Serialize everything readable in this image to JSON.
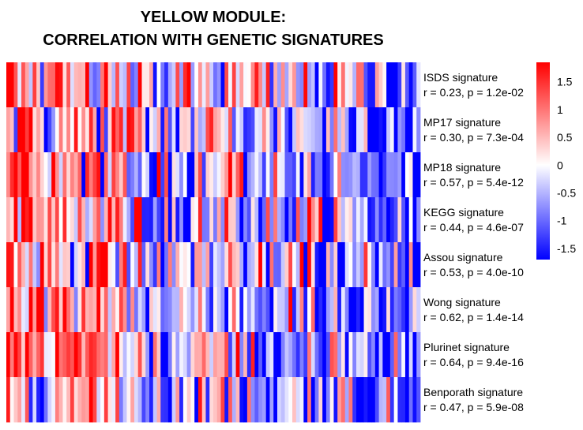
{
  "title_line1": "YELLOW MODULE:",
  "title_line2": "CORRELATION WITH GENETIC SIGNATURES",
  "chart_data": {
    "type": "heatmap",
    "title": "YELLOW MODULE: CORRELATION WITH GENETIC SIGNATURES",
    "columns": 110,
    "rows": [
      {
        "name": "ISDS signature",
        "stat": "r = 0.23, p = 1.2e-02",
        "r": 0.23
      },
      {
        "name": "MP17 signature",
        "stat": "r = 0.30, p = 7.3e-04",
        "r": 0.3
      },
      {
        "name": "MP18 signature",
        "stat": "r = 0.57, p = 5.4e-12",
        "r": 0.57
      },
      {
        "name": "KEGG signature",
        "stat": "r = 0.44, p = 4.6e-07",
        "r": 0.44
      },
      {
        "name": "Assou signature",
        "stat": "r = 0.53, p = 4.0e-10",
        "r": 0.53
      },
      {
        "name": "Wong signature",
        "stat": "r = 0.62, p = 1.4e-14",
        "r": 0.62
      },
      {
        "name": "Plurinet signature",
        "stat": "r = 0.64, p = 9.4e-16",
        "r": 0.64
      },
      {
        "name": "Benporath signature",
        "stat": "r = 0.47, p = 5.9e-08",
        "r": 0.47
      }
    ],
    "colorscale": {
      "low": "#0000ff",
      "mid": "#ffffff",
      "high": "#ff0000"
    },
    "zlim": [
      -1.7,
      1.85
    ],
    "legend_ticks": [
      {
        "value": 1.5,
        "label": "1.5"
      },
      {
        "value": 1,
        "label": "1"
      },
      {
        "value": 0.5,
        "label": "0.5"
      },
      {
        "value": 0,
        "label": "0"
      },
      {
        "value": -0.5,
        "label": "-0.5"
      },
      {
        "value": -1,
        "label": "-1"
      },
      {
        "value": -1.5,
        "label": "-1.5"
      }
    ],
    "legend_placement": "right"
  }
}
